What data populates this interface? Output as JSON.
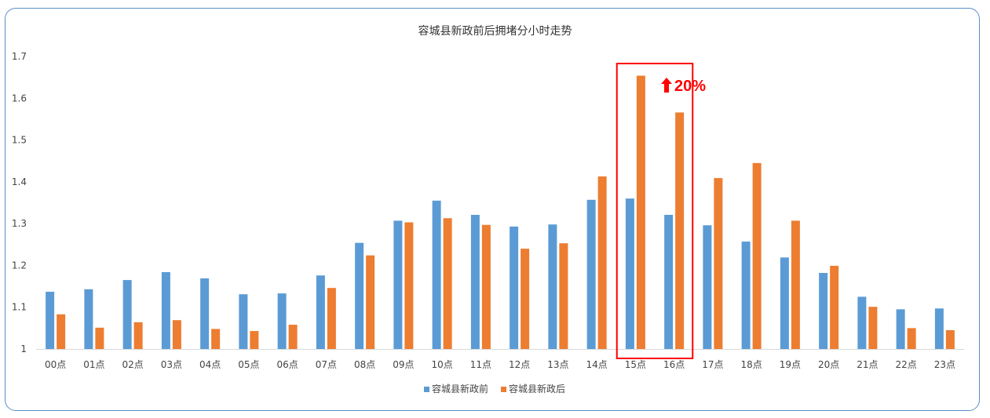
{
  "chart_data": {
    "type": "bar",
    "title": "容城县新政前后拥堵分小时走势",
    "xlabel": "",
    "ylabel": "",
    "ylim": [
      1,
      1.7
    ],
    "yticks": [
      "1",
      "1.1",
      "1.2",
      "1.3",
      "1.4",
      "1.5",
      "1.6",
      "1.7"
    ],
    "categories": [
      "00点",
      "01点",
      "02点",
      "03点",
      "04点",
      "05点",
      "06点",
      "07点",
      "08点",
      "09点",
      "10点",
      "11点",
      "12点",
      "13点",
      "14点",
      "15点",
      "16点",
      "17点",
      "18点",
      "19点",
      "20点",
      "21点",
      "22点",
      "23点"
    ],
    "series": [
      {
        "name": "容城县新政前",
        "color": "#5b9bd5",
        "values": [
          1.137,
          1.143,
          1.165,
          1.184,
          1.169,
          1.131,
          1.133,
          1.176,
          1.254,
          1.307,
          1.355,
          1.321,
          1.293,
          1.298,
          1.357,
          1.36,
          1.321,
          1.296,
          1.257,
          1.219,
          1.182,
          1.125,
          1.095,
          1.097
        ]
      },
      {
        "name": "容城县新政后",
        "color": "#ed7d31",
        "values": [
          1.083,
          1.051,
          1.064,
          1.069,
          1.048,
          1.043,
          1.058,
          1.146,
          1.224,
          1.303,
          1.313,
          1.297,
          1.24,
          1.253,
          1.413,
          1.654,
          1.566,
          1.409,
          1.445,
          1.307,
          1.199,
          1.101,
          1.05,
          1.045
        ]
      }
    ],
    "legend_position": "bottom-center",
    "grid": false,
    "annotation": {
      "text": "20%",
      "arrow": "up",
      "color": "#ff0000",
      "highlight_categories": [
        "15点",
        "16点"
      ]
    }
  }
}
